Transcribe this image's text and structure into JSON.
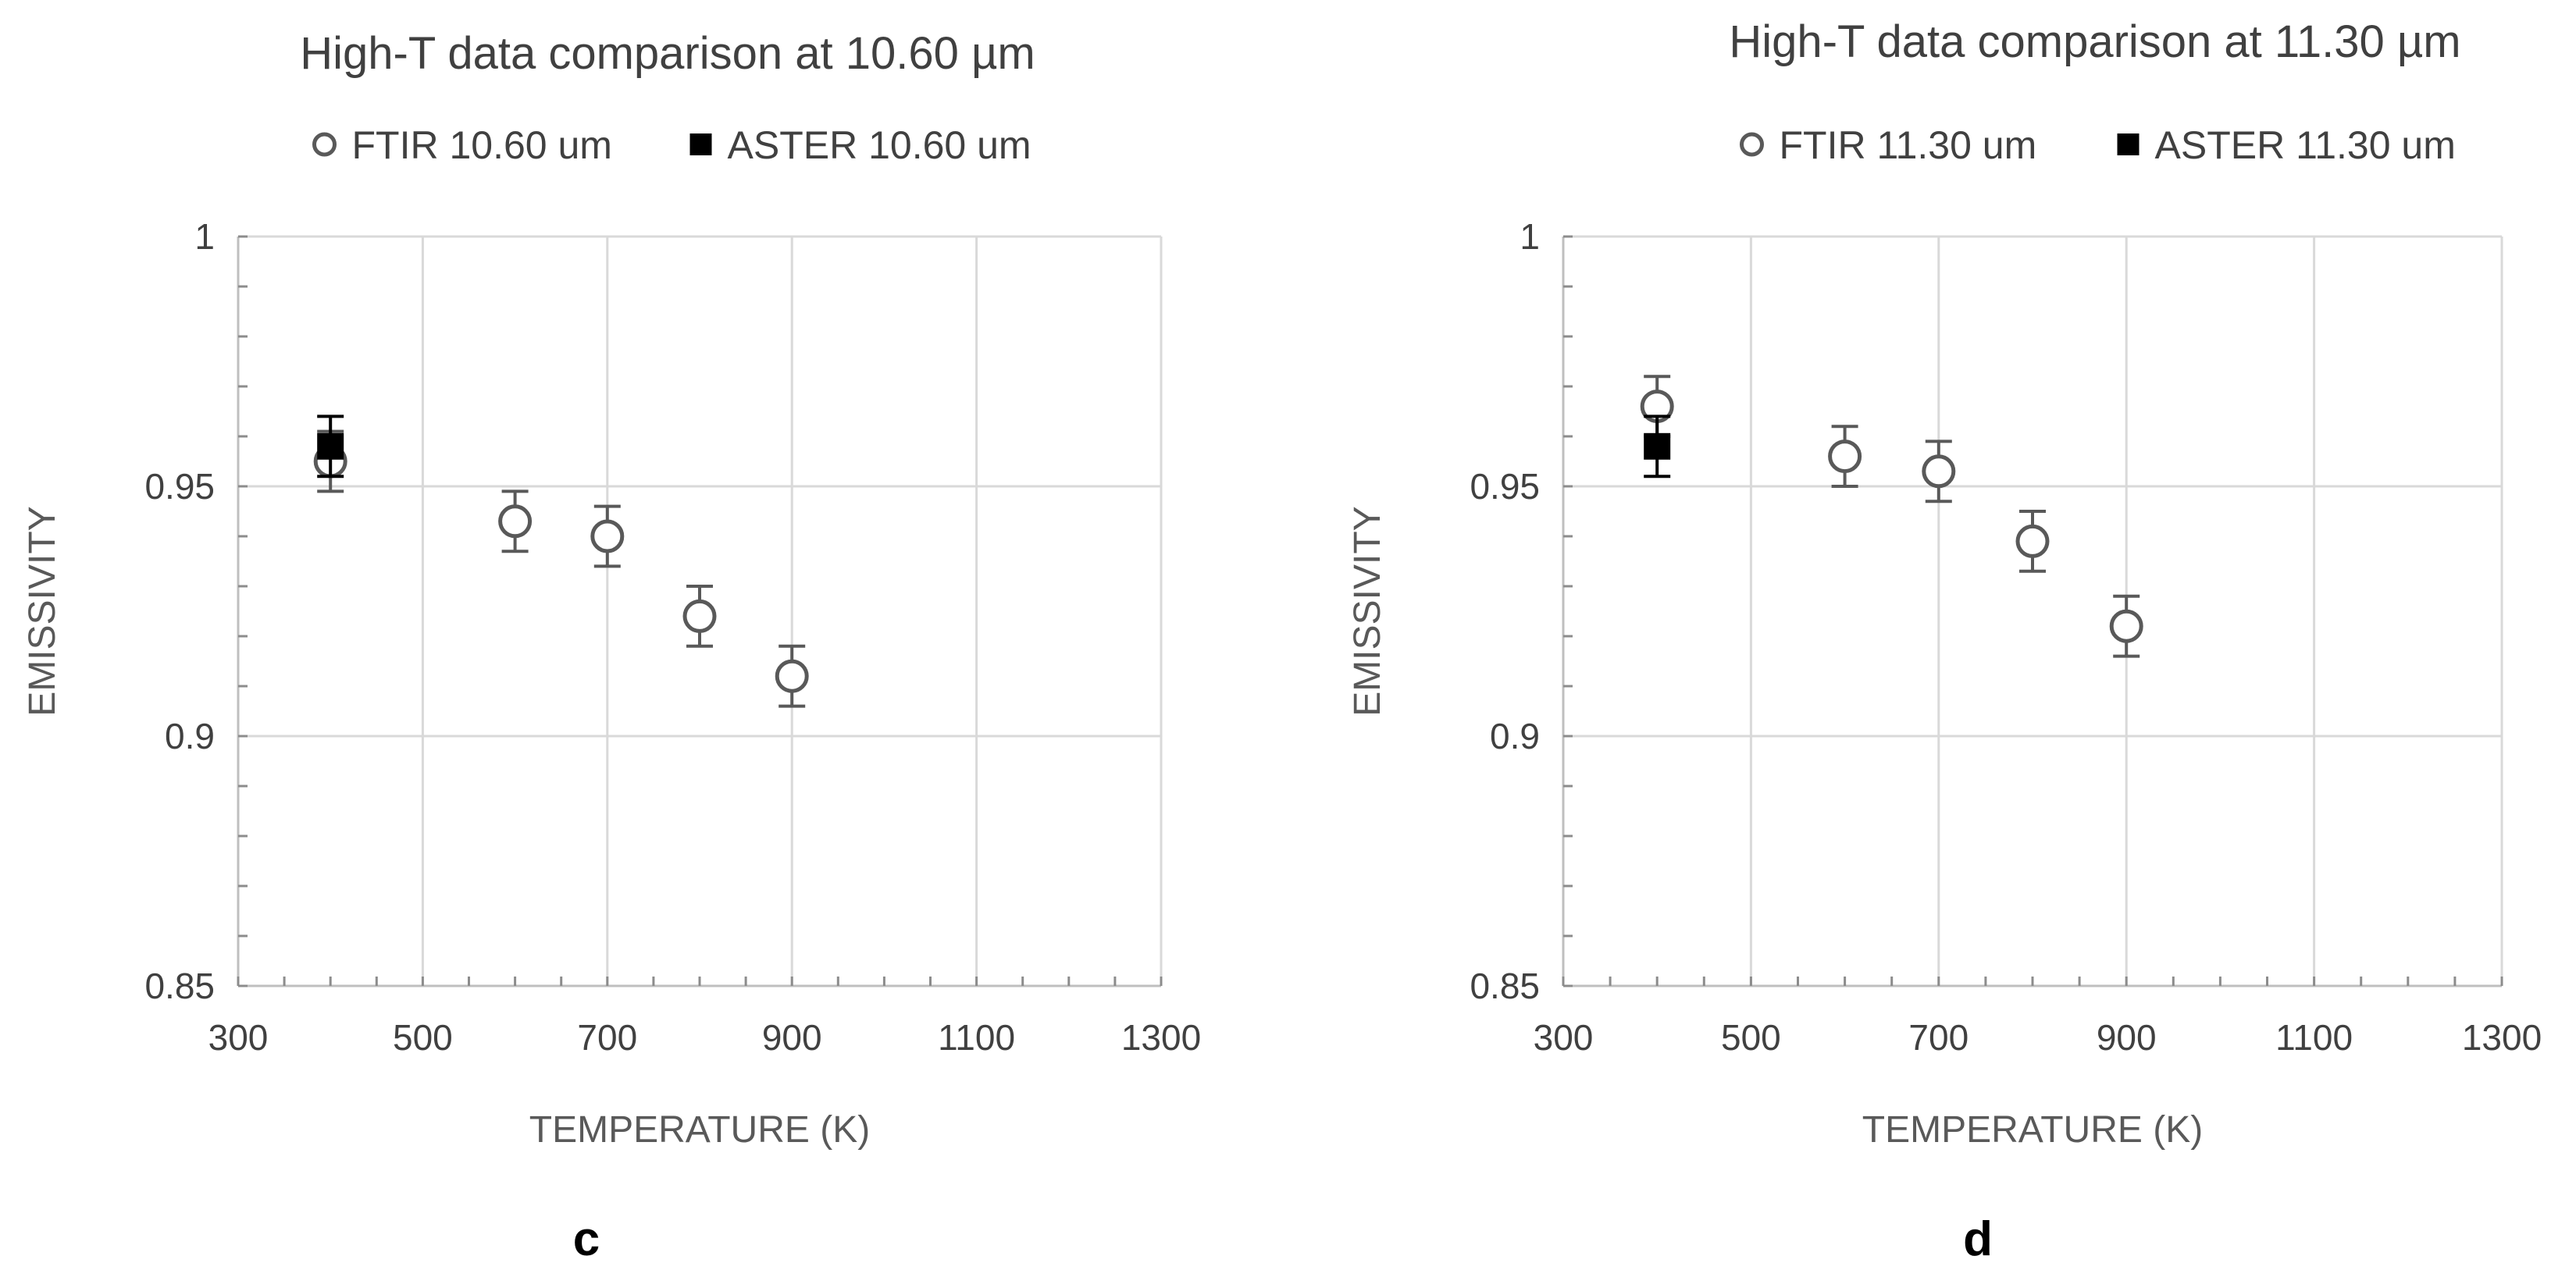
{
  "chart_data": [
    {
      "type": "scatter",
      "title": "High-T data comparison at 10.60 µm",
      "xlabel": "TEMPERATURE (K)",
      "ylabel": "EMISSIVITY",
      "xlim": [
        300,
        1300
      ],
      "ylim": [
        0.85,
        1
      ],
      "xticks": [
        300,
        500,
        700,
        900,
        1100,
        1300
      ],
      "xtick_labels": [
        "300",
        "500",
        "700",
        "900",
        "1100",
        "1300"
      ],
      "yticks": [
        0.85,
        0.9,
        0.95,
        1
      ],
      "ytick_labels": [
        "0.85",
        "0.9",
        "0.95",
        "1"
      ],
      "grid": true,
      "legend_position": "top",
      "panel_label": "c",
      "series": [
        {
          "name": "FTIR 10.60 um",
          "marker": "open-circle",
          "x": [
            400,
            600,
            700,
            800,
            900
          ],
          "y": [
            0.955,
            0.943,
            0.94,
            0.924,
            0.912
          ],
          "error": [
            0.006,
            0.006,
            0.006,
            0.006,
            0.006
          ]
        },
        {
          "name": "ASTER 10.60 um",
          "marker": "filled-square",
          "x": [
            400
          ],
          "y": [
            0.958
          ],
          "error": [
            0.006
          ]
        }
      ]
    },
    {
      "type": "scatter",
      "title": "High-T data comparison at 11.30 µm",
      "xlabel": "TEMPERATURE (K)",
      "ylabel": "EMISSIVITY",
      "xlim": [
        300,
        1300
      ],
      "ylim": [
        0.85,
        1
      ],
      "xticks": [
        300,
        500,
        700,
        900,
        1100,
        1300
      ],
      "xtick_labels": [
        "300",
        "500",
        "700",
        "900",
        "1100",
        "1300"
      ],
      "yticks": [
        0.85,
        0.9,
        0.95,
        1
      ],
      "ytick_labels": [
        "0.85",
        "0.9",
        "0.95",
        "1"
      ],
      "grid": true,
      "legend_position": "top",
      "panel_label": "d",
      "series": [
        {
          "name": "FTIR 11.30 um",
          "marker": "open-circle",
          "x": [
            400,
            600,
            700,
            800,
            900
          ],
          "y": [
            0.966,
            0.956,
            0.953,
            0.939,
            0.922
          ],
          "error": [
            0.006,
            0.006,
            0.006,
            0.006,
            0.006
          ]
        },
        {
          "name": "ASTER 11.30 um",
          "marker": "filled-square",
          "x": [
            400
          ],
          "y": [
            0.958
          ],
          "error": [
            0.006
          ]
        }
      ]
    }
  ]
}
